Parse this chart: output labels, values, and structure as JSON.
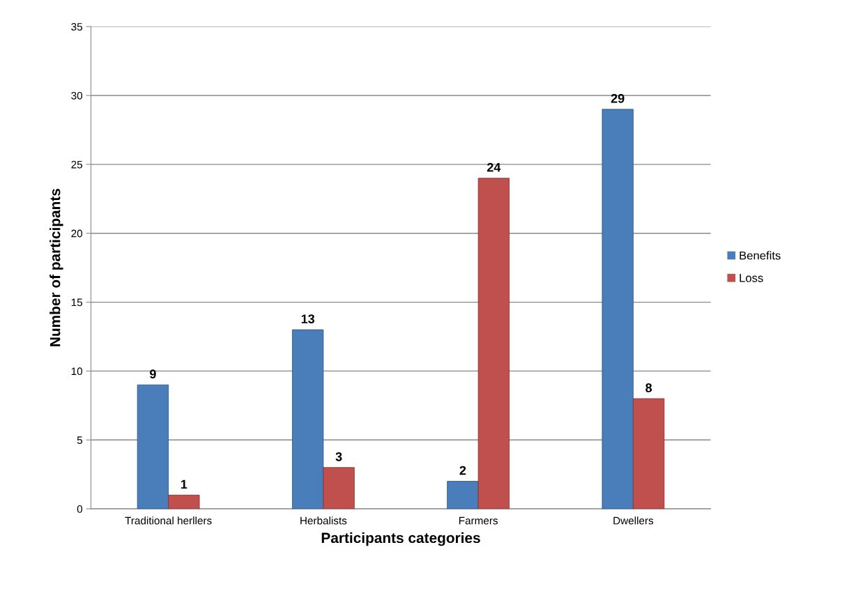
{
  "chart_data": {
    "type": "bar",
    "xlabel": "Participants categories",
    "ylabel": "Number of participants",
    "categories": [
      "Traditional herllers",
      "Herbalists",
      "Farmers",
      "Dwellers"
    ],
    "series": [
      {
        "name": "Benefits",
        "color": "#4a7ebb",
        "values": [
          9,
          13,
          2,
          29
        ]
      },
      {
        "name": "Loss",
        "color": "#c0504d",
        "values": [
          1,
          3,
          24,
          8
        ]
      }
    ],
    "ylim": [
      0,
      35
    ],
    "yticks": [
      0,
      5,
      10,
      15,
      20,
      25,
      30,
      35
    ],
    "grid": "y",
    "legend": "right",
    "data_labels": true
  }
}
